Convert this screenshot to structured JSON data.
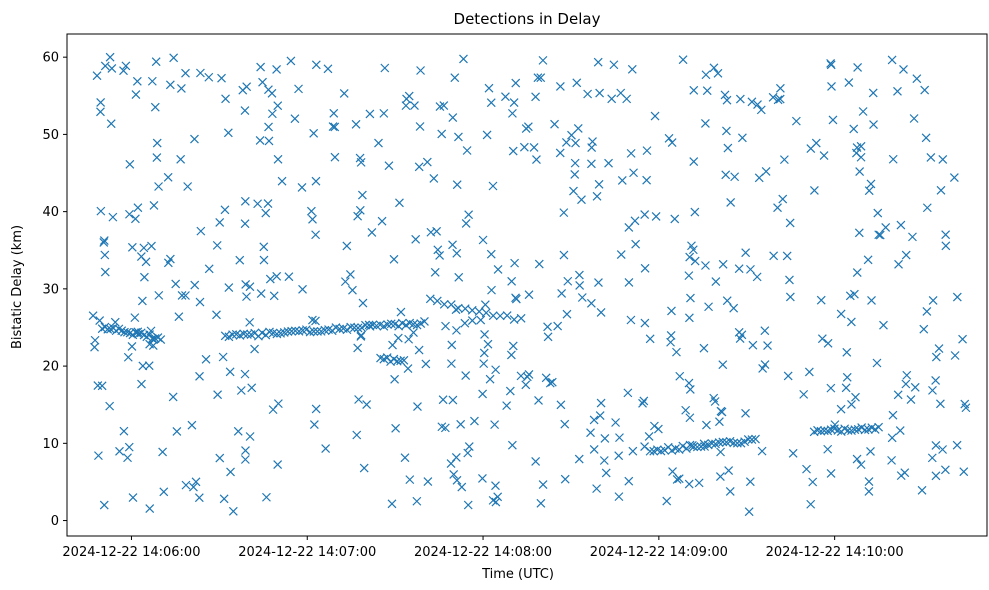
{
  "chart_data": {
    "type": "scatter",
    "title": "Detections in Delay",
    "xlabel": "Time (UTC)",
    "ylabel": "Bistatic Delay (km)",
    "marker": "x",
    "marker_color": "#1f77b4",
    "grid": false,
    "legend": "none",
    "x_start": "2024-12-22 14:05:45",
    "x_end": "2024-12-22 14:10:45",
    "xlim": [
      "2024-12-22 14:05:38",
      "2024-12-22 14:10:52"
    ],
    "ylim": [
      -2,
      63
    ],
    "x_ticks": [
      "2024-12-22 14:06:00",
      "2024-12-22 14:07:00",
      "2024-12-22 14:08:00",
      "2024-12-22 14:09:00",
      "2024-12-22 14:10:00"
    ],
    "y_ticks": [
      0,
      10,
      20,
      30,
      40,
      50,
      60
    ],
    "series": [
      {
        "noise_points": 620,
        "tracks": [
          {
            "start": "2024-12-22 14:05:50",
            "end": "2024-12-22 14:06:10",
            "delay_start": 25.0,
            "delay_end": 23.6,
            "count": 22
          },
          {
            "start": "2024-12-22 14:06:32",
            "end": "2024-12-22 14:07:40",
            "delay_start": 23.8,
            "delay_end": 25.6,
            "count": 55
          },
          {
            "start": "2024-12-22 14:07:42",
            "end": "2024-12-22 14:08:13",
            "delay_start": 28.5,
            "delay_end": 26.0,
            "count": 14
          },
          {
            "start": "2024-12-22 14:08:57",
            "end": "2024-12-22 14:09:33",
            "delay_start": 9.0,
            "delay_end": 10.4,
            "count": 30
          },
          {
            "start": "2024-12-22 14:09:53",
            "end": "2024-12-22 14:10:15",
            "delay_start": 11.5,
            "delay_end": 12.0,
            "count": 20
          },
          {
            "start": "2024-12-22 14:07:25",
            "end": "2024-12-22 14:07:33",
            "delay_start": 21.0,
            "delay_end": 20.5,
            "count": 8
          }
        ]
      }
    ]
  }
}
